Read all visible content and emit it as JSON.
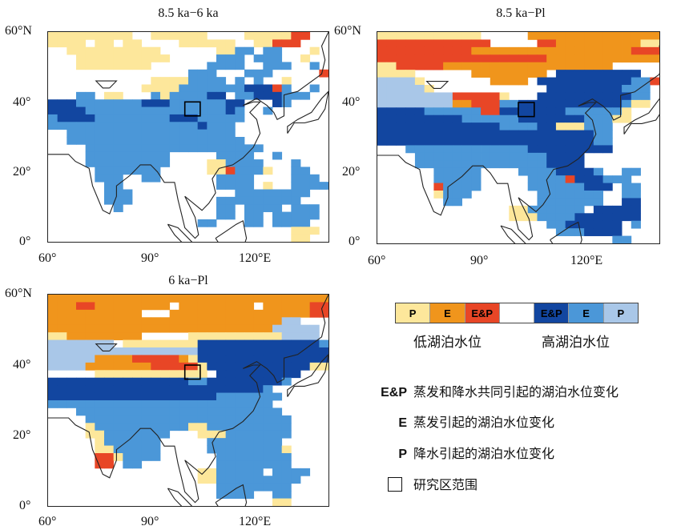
{
  "panels": [
    {
      "id": "a",
      "title": "8.5 ka−6 ka",
      "y_ticks": [
        "60°N",
        "40°",
        "20°",
        "0°"
      ],
      "x_ticks": [
        "60°",
        "90°",
        "120°E"
      ],
      "extent": {
        "lon": [
          60,
          142
        ],
        "lat": [
          0,
          60
        ]
      },
      "cells": [
        [
          "PPPPPPPPP..PPPPPP....PPPPPrr.."
        ],
        [
          "PPPP.PP.PP....PPPPPP..PPrRr..."
        ],
        [
          "..PPPPPPPPPP......PPEE.EE...P."
        ],
        [
          "...PPPPPPPPPP.....EEE.EEE..P.."
        ],
        [
          "...PPPPPPPP......EEEE..EEE..E."
        ],
        [
          "...............EEE...EEE.....R"
        ],
        [
          "...........PPPPEEEE.E.E..P...."
        ],
        [
          "..........PPPPEEEEEEEDDDrE..E."
        ],
        [
          "...EE.PP...EPEEEEDD.EEDDDEEE.."
        ],
        [
          "DDDEEEEEEEDDDEEEEEEDD...DE...."
        ],
        [
          "DDDDEEEEEEEEEEEEEEEDE..E......"
        ],
        [
          "EDDDDEEEEEEEEDDDEEEEE........."
        ],
        [
          "EEEEEEEEEEEEEEEEDEEE.........."
        ],
        [
          "..EEEEEEEEEEEEEEEEEE.........."
        ],
        [
          "..EEEEEEEEEEEEEEEEEEE........."
        ],
        [
          "....EEEEEEEEEEEEEEEEEEE......."
        ],
        [
          "....EEEEEEEEE.....EEEE..E....."
        ],
        [
          "....EEEEEEEEE....PPEEEE...E..."
        ],
        [
          ".....EEEEEEE.....PPREEEP..EE.."
        ],
        [
          ".....EEE..EE......EEEE....EEE."
        ],
        [
          "......EE..........EEEE.P..EEEE"
        ],
        [
          "......EEE...........EEEEEEEE.."
        ],
        [
          "......EEE.........EEEEEEEEE..."
        ],
        [
          ".......E..........EE.EEEE.EEE."
        ],
        [
          "..................EE.EE.EEEEE."
        ],
        [
          "................EE...EE.EEEE.."
        ],
        [
          "..........................PPP."
        ],
        [
          "..........................PP.."
        ]
      ]
    },
    {
      "id": "b",
      "title": "8.5 ka−Pl",
      "y_ticks": [
        "60°N",
        "40°",
        "20°",
        "0°"
      ],
      "x_ticks": [
        "60°",
        "90°",
        "120°E"
      ],
      "extent": {
        "lon": [
          60,
          140
        ],
        "lat": [
          0,
          60
        ]
      },
      "cells": [
        [
          "PPPPPPPPPPP.....OOOOOOOOOOOOOO"
        ],
        [
          "RRRRRRRRRRRR.....RROOOOOOOOOPP"
        ],
        [
          "RRRRRRRRRROOOOOOOOOOOOOOOOORRR"
        ],
        [
          "RRRRRRRRRRRRRRRRRROOOOOOOOOOOO"
        ],
        [
          "PPRRRRROOOOOOOOOOOOOOOOOO....."
        ],
        [
          "PPPP......OOOOOOOO.DDDDDDDDD...."
        ],
        [
          "LLLLP.......OOOO.DDDDDDDDDDEER"
        ],
        [
          "LLLLLP............DDDDDDDDEEE.."
        ],
        [
          "LLLLLLLLRRRRRP...DDDDDDDDDDEE."
        ],
        [
          "LLLLLLLLOORRREEDDDDDDDDDDDEPP."
        ],
        [
          "DDDDDEEEEEERRDDDDDDDEEEEEEP..."
        ],
        [
          "DDDDDDDDDEEEEEEDDDDDDDEEEPP..."
        ],
        [
          "DDDDDDDDDDDDDEEEEDDPPPEEE....."
        ],
        [
          "DDDDDDDDDDDDDDDDDDDDDDDEE....."
        ],
        [
          "DDDDDDDDDDDDDDDDDDDDDDDEE....."
        ],
        [
          "...EEEEEEEEEEEEEDDDDDDDDD....."
        ],
        [
          "....EEEEEEEEEEEEEEDDDD........"
        ],
        [
          "....EEEEEEEEEEEEEEDDDD........"
        ],
        [
          "......EEEEE....EEEEDDDDE..EE.."
        ],
        [
          "......EEEEE.....EEEERDDDEEE..."
        ],
        [
          "......REEEE.....EEEEEEDDD.EE.."
        ],
        [
          "......PEEE.......EEEEEEE..EE.."
        ],
        [
          ".......EE........EEEEEEE..DD.."
        ],
        [
          "..............PPEEEEEE.DDDDD.."
        ],
        [
          "..............PPPEEEEDDDDDDD.."
        ],
        [
          "..................EEDDDDDD.E.."
        ],
        [
          "...................EEEDDDD...."
        ],
        [
          ".........................EE..."
        ]
      ]
    },
    {
      "id": "c",
      "title": "6 ka−Pl",
      "y_ticks": [
        "60°N",
        "40°",
        "20°",
        "0°"
      ],
      "x_ticks": [
        "60°",
        "90°",
        "120°E"
      ],
      "extent": {
        "lon": [
          60,
          142
        ],
        "lat": [
          0,
          60
        ]
      },
      "cells": [
        [
          "OOOOOOOOOOOOOOOOOOOOOOOOOOOOOO"
        ],
        [
          "OOORROOOOOOOO.OOOOOOOO.OOOOORR"
        ],
        [
          "OOOOOOOOOO...OOOOOOOOOOOOOOORR"
        ],
        [
          "OOOOOOOOOOOOOOOOOOOOOOOOOLL..."
        ],
        [
          "OOOOOOOOOOOOOOOOOOOOOOOOLLLLL."
        ],
        [
          "PPOOOOOOOO.....PPPPPPPPPPLLLL."
        ],
        [
          "LLLLLLL.PPPPPPPPDDDDDDDDDDDDDE"
        ],
        [
          "LLLLLLLLLLLLLLLLDDDDDDDDDDDDDD"
        ],
        [
          "LLLLLOOOORRRRROPDDDDDDDDDDDDDD"
        ],
        [
          "LLLLOOOOOOORRRRRPDDDDDDDDDDDPP"
        ],
        [
          ".....PPPPPPPPPPPP.DDDDDDDDD..."
        ],
        [
          "DDDDDDDDDDDDDDDEEDDDDDDDDE...."
        ],
        [
          "DDDDDDDDDDDDDDDDDDDDDDDE......"
        ],
        [
          "DDDDDDDDDDDDDDDDDDEEEEEEE....."
        ],
        [
          "EEEEEEEEEEEEEEEEEEEEEEEE......"
        ],
        [
          "...EEEEEEEEEEEEEEEEEEEEEE....."
        ],
        [
          "....EEEEEEEEEEEEEEEEEEEEEE...."
        ],
        [
          "....PEEEEEEEEEEPPEEEEEEEEE...."
        ],
        [
          "....PPEEEEEEE...PPPEEEEEEE...."
        ],
        [
          ".....PEEEEEE.....EEEEEEEE....."
        ],
        [
          ".....PPEEEEE.....EEEEEEEEP...."
        ],
        [
          ".....RRPEEEE......EEEEEEEE...."
        ],
        [
          ".....RR.EE........EEEEEEEE...."
        ],
        [
          "................PPEEEEE.EEEE.."
        ],
        [
          "................PPEEEEEEEEE..."
        ],
        [
          "..................EEEEEEEE...."
        ],
        [
          "..................EEEE..EE...."
        ],
        [
          "........................PP...."
        ]
      ]
    }
  ],
  "legend": {
    "swatches": [
      {
        "label": "P",
        "color": "#fde79b"
      },
      {
        "label": "E",
        "color": "#f0951c"
      },
      {
        "label": "E&P",
        "color": "#e84626"
      },
      {
        "label": "",
        "color": "#ffffff"
      },
      {
        "label": "E&P",
        "color": "#1246a0"
      },
      {
        "label": "E",
        "color": "#4b97d8"
      },
      {
        "label": "P",
        "color": "#a9c7e8"
      }
    ],
    "low_label": "低湖泊水位",
    "high_label": "高湖泊水位",
    "keys": [
      {
        "code": "E&P",
        "text": "蒸发和降水共同引起的湖泊水位变化"
      },
      {
        "code": "E",
        "text": "蒸发引起的湖泊水位变化"
      },
      {
        "code": "P",
        "text": "降水引起的湖泊水位变化"
      },
      {
        "code": "",
        "text": "研究区范围"
      }
    ]
  },
  "colors": {
    "low_P": "#fde79b",
    "low_E": "#f0951c",
    "low_EP": "#e84626",
    "high_EP": "#1246a0",
    "high_E": "#4b97d8",
    "high_P": "#a9c7e8"
  }
}
